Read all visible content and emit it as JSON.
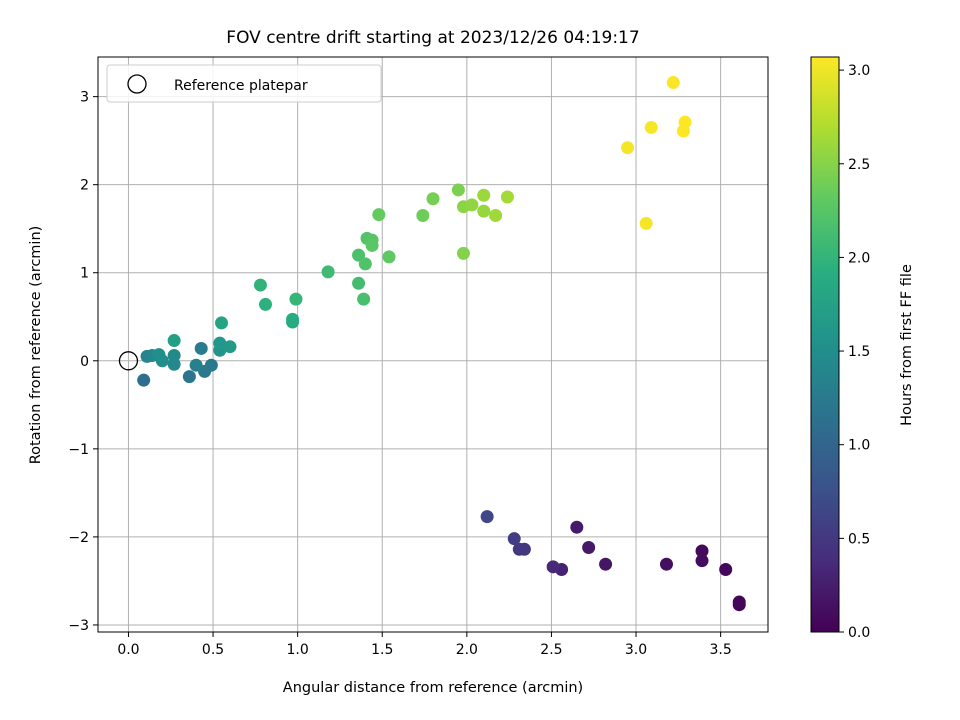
{
  "chart_data": {
    "type": "scatter",
    "title": "FOV centre drift starting at 2023/12/26 04:19:17",
    "xlabel": "Angular distance from reference (arcmin)",
    "ylabel": "Rotation from reference (arcmin)",
    "xlim": [
      -0.18,
      3.78
    ],
    "ylim": [
      -3.08,
      3.45
    ],
    "xticks": [
      0.0,
      0.5,
      1.0,
      1.5,
      2.0,
      2.5,
      3.0,
      3.5
    ],
    "xtick_labels": [
      "0.0",
      "0.5",
      "1.0",
      "1.5",
      "2.0",
      "2.5",
      "3.0",
      "3.5"
    ],
    "yticks": [
      -3,
      -2,
      -1,
      0,
      1,
      2,
      3
    ],
    "ytick_labels": [
      "−3",
      "−2",
      "−1",
      "0",
      "1",
      "2",
      "3"
    ],
    "grid": true,
    "legend": {
      "position": "top-left",
      "label": "Reference platepar"
    },
    "reference_point": {
      "x": 0.0,
      "y": 0.0
    },
    "colorbar": {
      "label": "Hours from first FF file",
      "colormap": "viridis",
      "range": [
        0.0,
        3.07
      ],
      "ticks": [
        0.0,
        0.5,
        1.0,
        1.5,
        2.0,
        2.5,
        3.0
      ],
      "tick_labels": [
        "0.0",
        "0.5",
        "1.0",
        "1.5",
        "2.0",
        "2.5",
        "3.0"
      ]
    },
    "points": [
      {
        "x": 3.61,
        "y": -2.77,
        "c": 0.02
      },
      {
        "x": 3.61,
        "y": -2.74,
        "c": 0.04
      },
      {
        "x": 3.53,
        "y": -2.37,
        "c": 0.06
      },
      {
        "x": 3.39,
        "y": -2.16,
        "c": 0.08
      },
      {
        "x": 3.39,
        "y": -2.27,
        "c": 0.1
      },
      {
        "x": 3.18,
        "y": -2.31,
        "c": 0.12
      },
      {
        "x": 2.82,
        "y": -2.31,
        "c": 0.18
      },
      {
        "x": 2.72,
        "y": -2.12,
        "c": 0.2
      },
      {
        "x": 2.65,
        "y": -1.89,
        "c": 0.22
      },
      {
        "x": 2.56,
        "y": -2.37,
        "c": 0.3
      },
      {
        "x": 2.51,
        "y": -2.34,
        "c": 0.35
      },
      {
        "x": 2.34,
        "y": -2.14,
        "c": 0.48
      },
      {
        "x": 2.31,
        "y": -2.14,
        "c": 0.5
      },
      {
        "x": 2.28,
        "y": -2.02,
        "c": 0.55
      },
      {
        "x": 2.12,
        "y": -1.77,
        "c": 0.65
      },
      {
        "x": 0.09,
        "y": -0.22,
        "c": 1.1
      },
      {
        "x": 0.36,
        "y": -0.18,
        "c": 1.2
      },
      {
        "x": 0.45,
        "y": -0.12,
        "c": 1.22
      },
      {
        "x": 0.49,
        "y": -0.05,
        "c": 1.25
      },
      {
        "x": 0.43,
        "y": 0.14,
        "c": 1.28
      },
      {
        "x": 0.4,
        "y": -0.05,
        "c": 1.32
      },
      {
        "x": 0.11,
        "y": 0.05,
        "c": 1.38
      },
      {
        "x": 0.14,
        "y": 0.06,
        "c": 1.4
      },
      {
        "x": 0.27,
        "y": -0.04,
        "c": 1.42
      },
      {
        "x": 0.27,
        "y": 0.06,
        "c": 1.45
      },
      {
        "x": 0.2,
        "y": 0.0,
        "c": 1.48
      },
      {
        "x": 0.18,
        "y": 0.07,
        "c": 1.52
      },
      {
        "x": 0.54,
        "y": 0.12,
        "c": 1.58
      },
      {
        "x": 0.54,
        "y": 0.2,
        "c": 1.62
      },
      {
        "x": 0.6,
        "y": 0.16,
        "c": 1.65
      },
      {
        "x": 0.27,
        "y": 0.23,
        "c": 1.72
      },
      {
        "x": 0.55,
        "y": 0.43,
        "c": 1.78
      },
      {
        "x": 0.97,
        "y": 0.44,
        "c": 1.85
      },
      {
        "x": 0.97,
        "y": 0.47,
        "c": 1.88
      },
      {
        "x": 0.81,
        "y": 0.64,
        "c": 1.95
      },
      {
        "x": 0.78,
        "y": 0.86,
        "c": 1.98
      },
      {
        "x": 0.99,
        "y": 0.7,
        "c": 2.02
      },
      {
        "x": 1.18,
        "y": 1.01,
        "c": 2.08
      },
      {
        "x": 1.36,
        "y": 0.88,
        "c": 2.12
      },
      {
        "x": 1.39,
        "y": 0.7,
        "c": 2.15
      },
      {
        "x": 1.36,
        "y": 1.2,
        "c": 2.18
      },
      {
        "x": 1.4,
        "y": 1.1,
        "c": 2.2
      },
      {
        "x": 1.41,
        "y": 1.39,
        "c": 2.22
      },
      {
        "x": 1.44,
        "y": 1.37,
        "c": 2.25
      },
      {
        "x": 1.44,
        "y": 1.31,
        "c": 2.27
      },
      {
        "x": 1.54,
        "y": 1.18,
        "c": 2.3
      },
      {
        "x": 1.48,
        "y": 1.66,
        "c": 2.33
      },
      {
        "x": 1.74,
        "y": 1.65,
        "c": 2.38
      },
      {
        "x": 1.8,
        "y": 1.84,
        "c": 2.42
      },
      {
        "x": 1.95,
        "y": 1.94,
        "c": 2.45
      },
      {
        "x": 1.98,
        "y": 1.22,
        "c": 2.48
      },
      {
        "x": 1.98,
        "y": 1.75,
        "c": 2.52
      },
      {
        "x": 2.03,
        "y": 1.77,
        "c": 2.55
      },
      {
        "x": 2.1,
        "y": 1.7,
        "c": 2.58
      },
      {
        "x": 2.1,
        "y": 1.88,
        "c": 2.6
      },
      {
        "x": 2.17,
        "y": 1.65,
        "c": 2.62
      },
      {
        "x": 2.24,
        "y": 1.86,
        "c": 2.64
      },
      {
        "x": 2.95,
        "y": 2.42,
        "c": 3.02
      },
      {
        "x": 3.06,
        "y": 1.56,
        "c": 3.03
      },
      {
        "x": 3.09,
        "y": 2.65,
        "c": 3.04
      },
      {
        "x": 3.22,
        "y": 3.16,
        "c": 3.05
      },
      {
        "x": 3.28,
        "y": 2.61,
        "c": 3.06
      },
      {
        "x": 3.29,
        "y": 2.71,
        "c": 3.07
      }
    ]
  }
}
